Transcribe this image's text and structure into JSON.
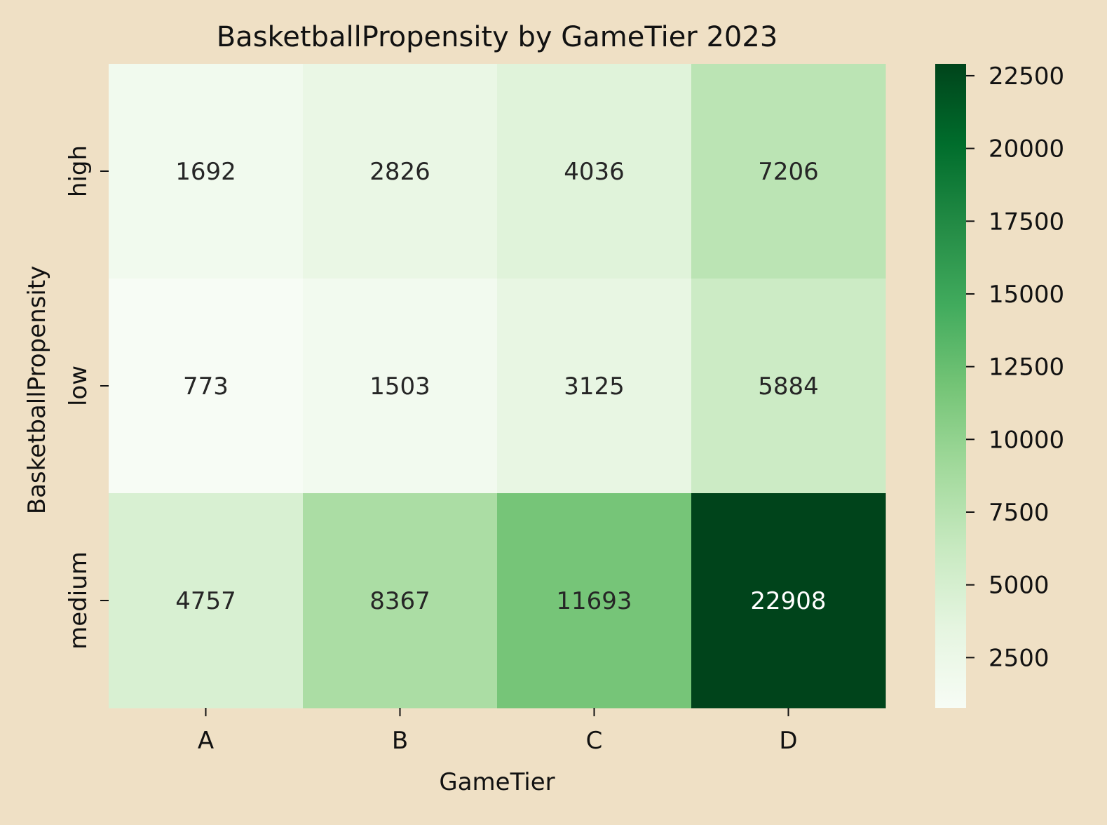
{
  "chart_data": {
    "type": "heatmap",
    "title": "BasketballPropensity by GameTier 2023",
    "xlabel": "GameTier",
    "ylabel": "BasketballPropensity",
    "x_categories": [
      "A",
      "B",
      "C",
      "D"
    ],
    "y_categories": [
      "high",
      "low",
      "medium"
    ],
    "values": [
      [
        1692,
        2826,
        4036,
        7206
      ],
      [
        773,
        1503,
        3125,
        5884
      ],
      [
        4757,
        8367,
        11693,
        22908
      ]
    ],
    "colormap": "Greens",
    "color_range": [
      773,
      22908
    ],
    "colorbar_ticks": [
      2500,
      5000,
      7500,
      10000,
      12500,
      15000,
      17500,
      20000,
      22500
    ],
    "colorbar_tick_labels": [
      "2500",
      "5000",
      "7500",
      "10000",
      "12500",
      "15000",
      "17500",
      "20000",
      "22500"
    ],
    "grid": false
  }
}
